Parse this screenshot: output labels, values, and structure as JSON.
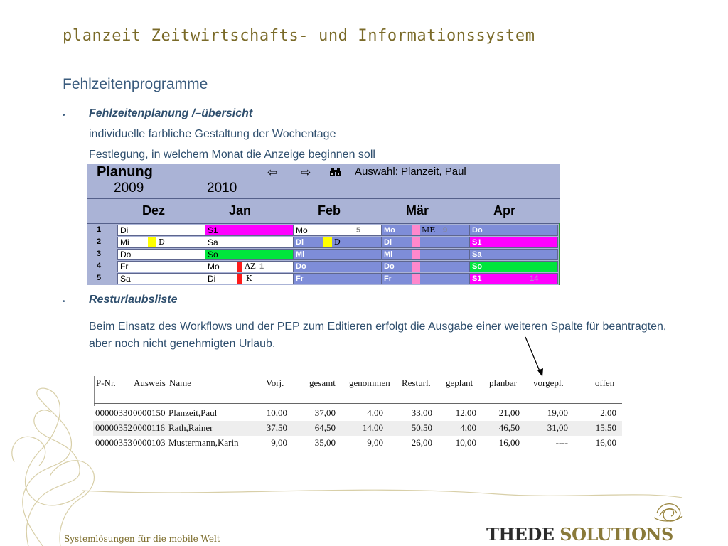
{
  "title": "planzeit Zeitwirtschafts- und Informationssystem",
  "subtitle": "Fehlzeitenprogramme",
  "section1": {
    "heading": "Fehlzeitenplanung /–übersicht",
    "lines": [
      "individuelle farbliche Gestaltung der Wochentage",
      "Festlegung, in welchem Monat die Anzeige beginnen soll"
    ]
  },
  "planung": {
    "title": "Planung",
    "arrow_left": "⇦",
    "arrow_right": "⇨",
    "selection": "Auswahl: Planzeit, Paul",
    "years": [
      "2009",
      "2010"
    ],
    "months": [
      "Dez",
      "Jan",
      "Feb",
      "Mär",
      "Apr"
    ],
    "row_numbers": [
      "1",
      "2",
      "3",
      "4",
      "5"
    ],
    "cells": {
      "dez": [
        "Di",
        "Mi",
        "Do",
        "Fr",
        "Sa"
      ],
      "jan": [
        "S1",
        "Sa",
        "So",
        "Mo",
        "Di"
      ],
      "feb": [
        "Mo",
        "Di",
        "Mi",
        "Do",
        "Fr"
      ],
      "maer": [
        "Mo",
        "Di",
        "Mi",
        "Do",
        "Fr"
      ],
      "apr": [
        "Do",
        "S1",
        "Sa",
        "So",
        "S1"
      ]
    },
    "codes": {
      "dez_mi": "D",
      "jan_mo": "AZ",
      "jan_mo_num": "1",
      "jan_di": "K",
      "feb_mo_num": "5",
      "feb_di": "D",
      "maer_mo": "ME",
      "maer_mo_num": "9",
      "apr_s1_num": "14"
    },
    "colors": {
      "background": "#aab3d6",
      "weekday_blue": "#7e8dd8",
      "magenta": "#ff00ff",
      "green": "#00e63c",
      "yellow": "#ffff00",
      "red": "#ff1a1a",
      "pink": "#ff88cc"
    }
  },
  "section2": {
    "heading": "Resturlaubsliste",
    "paragraph": "Beim Einsatz des Workflows und der PEP zum Editieren erfolgt die Ausgabe einer weiteren Spalte für  beantragten, aber noch nicht genehmigten Urlaub."
  },
  "resturlaub": {
    "headers": [
      "P-Nr.",
      "Ausweis",
      "Name",
      "Vorj.",
      "gesamt",
      "genommen",
      "Resturl.",
      "geplant",
      "planbar",
      "vorgepl.",
      "offen"
    ],
    "rows": [
      [
        "00000330",
        "0000150",
        "Planzeit,Paul",
        "10,00",
        "37,00",
        "4,00",
        "33,00",
        "12,00",
        "21,00",
        "19,00",
        "2,00"
      ],
      [
        "00000352",
        "0000116",
        "Rath,Rainer",
        "37,50",
        "64,50",
        "14,00",
        "50,50",
        "4,00",
        "46,50",
        "31,00",
        "15,50"
      ],
      [
        "00000353",
        "0000103",
        "Mustermann,Karin",
        "9,00",
        "35,00",
        "9,00",
        "26,00",
        "10,00",
        "16,00",
        "----",
        "16,00"
      ]
    ]
  },
  "footer": {
    "tagline": "Systemlösungen für die mobile Welt",
    "brand_part1": "THEDE",
    "brand_part2": "SOLUTIONS",
    "brand_color1": "#2b2b2b",
    "brand_color2": "#8a7a3a"
  }
}
